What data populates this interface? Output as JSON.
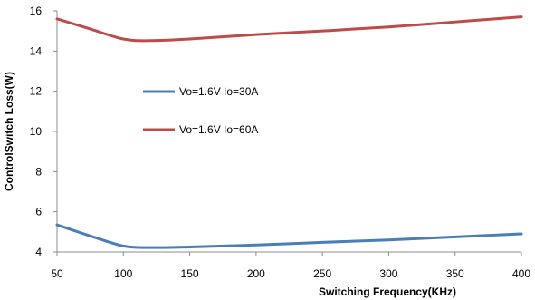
{
  "chart_data": {
    "type": "line",
    "xlabel": "Switching Frequency(KHz)",
    "ylabel": "ControlSwitch Loss(W)",
    "xlim": [
      50,
      400
    ],
    "ylim": [
      4,
      16
    ],
    "x_ticks": [
      "50",
      "100",
      "150",
      "200",
      "250",
      "300",
      "350",
      "400"
    ],
    "y_ticks": [
      "4",
      "6",
      "8",
      "10",
      "12",
      "14",
      "16"
    ],
    "grid": false,
    "legend_position": "center-left",
    "series": [
      {
        "name": "Vo=1.6V Io=30A",
        "color": "#4a7ebb",
        "x": [
          50,
          75,
          100,
          120,
          150,
          200,
          250,
          300,
          350,
          400
        ],
        "y": [
          5.35,
          4.8,
          4.3,
          4.22,
          4.25,
          4.35,
          4.48,
          4.6,
          4.75,
          4.9
        ]
      },
      {
        "name": "Vo=1.6V Io=60A",
        "color": "#be4b48",
        "x": [
          50,
          75,
          100,
          120,
          150,
          200,
          250,
          300,
          350,
          400
        ],
        "y": [
          15.6,
          15.1,
          14.6,
          14.52,
          14.6,
          14.82,
          15.0,
          15.2,
          15.45,
          15.7
        ]
      }
    ]
  }
}
